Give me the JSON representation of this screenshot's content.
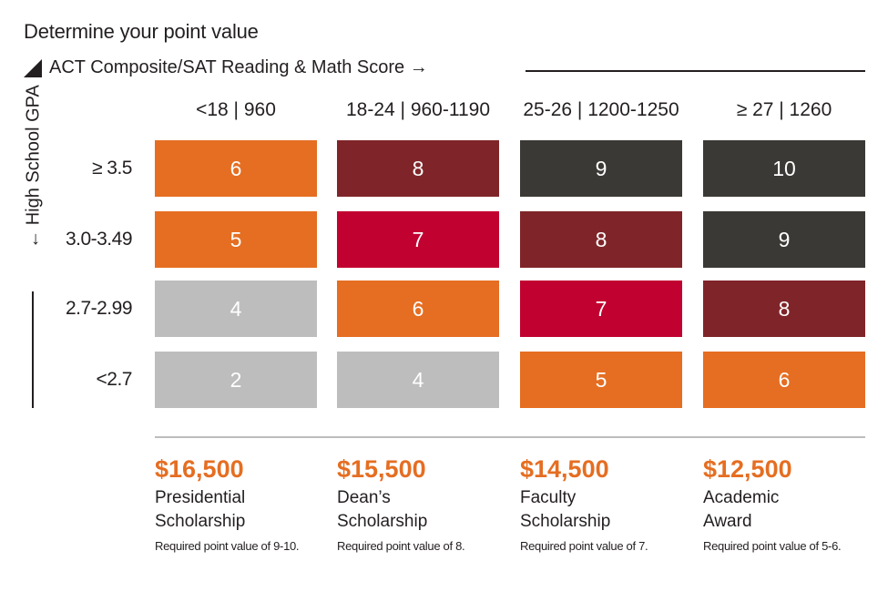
{
  "title": "Determine your point value",
  "x_axis_label": "ACT Composite/SAT Reading & Math Score →",
  "y_axis_label": "← High School GPA",
  "colors": {
    "orange": "#e56e22",
    "maroon": "#7f2529",
    "crimson": "#c10230",
    "charcoal": "#3b3935",
    "gray": "#bdbdbd",
    "accent_text": "#e56e22"
  },
  "chart_data": {
    "type": "table",
    "columns": [
      "<18 | 960",
      "18-24 | 960-1190",
      "25-26 | 1200-1250",
      "≥ 27 | 1260"
    ],
    "rows": [
      "≥ 3.5",
      "3.0-3.49",
      "2.7-2.99",
      "<2.7"
    ],
    "values": [
      [
        6,
        8,
        9,
        10
      ],
      [
        5,
        7,
        8,
        9
      ],
      [
        4,
        6,
        7,
        8
      ],
      [
        2,
        4,
        5,
        6
      ]
    ],
    "cell_colors": [
      [
        "#e56e22",
        "#7f2529",
        "#3b3935",
        "#3b3935"
      ],
      [
        "#e56e22",
        "#c10230",
        "#7f2529",
        "#3b3935"
      ],
      [
        "#bdbdbd",
        "#e56e22",
        "#c10230",
        "#7f2529"
      ],
      [
        "#bdbdbd",
        "#bdbdbd",
        "#e56e22",
        "#e56e22"
      ]
    ]
  },
  "awards": [
    {
      "amount": "$16,500",
      "line1": "Presidential",
      "line2": "Scholarship",
      "requirement": "Required point value of 9-10."
    },
    {
      "amount": "$15,500",
      "line1": "Dean’s",
      "line2": "Scholarship",
      "requirement": "Required point value of 8."
    },
    {
      "amount": "$14,500",
      "line1": "Faculty",
      "line2": "Scholarship",
      "requirement": "Required point value of 7."
    },
    {
      "amount": "$12,500",
      "line1": "Academic",
      "line2": "Award",
      "requirement": "Required point value of 5-6."
    }
  ]
}
